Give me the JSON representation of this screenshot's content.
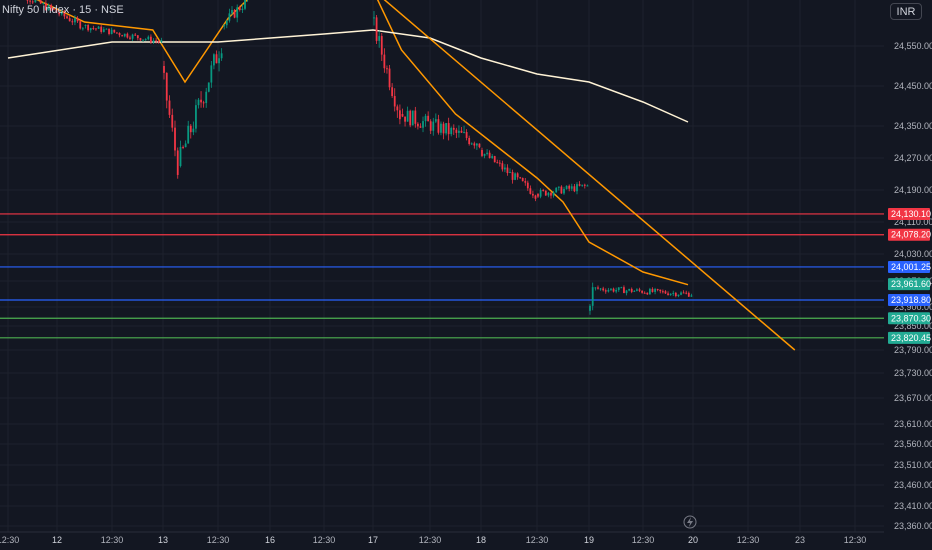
{
  "header": {
    "symbol": "Nifty 50 Index · 15 · NSE",
    "currency": "INR"
  },
  "chart_data": {
    "type": "candlestick",
    "interval": "15",
    "yaxis": {
      "ylim": [
        23340,
        24680
      ],
      "ticks": [
        24550,
        24450,
        24350,
        24270,
        24190,
        24110,
        24030,
        23970,
        23900,
        23850,
        23790,
        23730,
        23670,
        23610,
        23560,
        23510,
        23460,
        23410,
        23360
      ],
      "tick_labels": [
        "24,550.00",
        "24,450.00",
        "24,350.00",
        "24,270.00",
        "24,190.00",
        "24,110.00",
        "24,030.00",
        "23,970.00",
        "23,900.00",
        "23,850.00",
        "23,790.00",
        "23,730.00",
        "23,670.00",
        "23,610.00",
        "23,560.00",
        "23,510.00",
        "23,460.00",
        "23,410.00",
        "23,360.00"
      ]
    },
    "xaxis": {
      "tick_labels": [
        "12:30",
        "12",
        "12:30",
        "13",
        "12:30",
        "16",
        "12:30",
        "17",
        "12:30",
        "18",
        "12:30",
        "19",
        "12:30",
        "20",
        "12:30",
        "23",
        "12:30"
      ],
      "session_boundaries": [
        "12",
        "13",
        "16",
        "17",
        "18",
        "19",
        "20"
      ]
    },
    "price_labels": [
      {
        "value": 24130.1,
        "text": "24,130.10",
        "color": "#f23645"
      },
      {
        "value": 24078.2,
        "text": "24,078.20",
        "color": "#f23645"
      },
      {
        "value": 24001.25,
        "text": "24,001.25",
        "color": "#2962ff"
      },
      {
        "value": 23961.6,
        "text": "23,961.60",
        "color": "#22ab94"
      },
      {
        "value": 23918.8,
        "text": "23,918.80",
        "color": "#2962ff"
      },
      {
        "value": 23870.3,
        "text": "23,870.30",
        "color": "#22ab94"
      },
      {
        "value": 23820.45,
        "text": "23,820.45",
        "color": "#22ab94"
      }
    ],
    "horizontal_lines": [
      {
        "value": 24130.1,
        "color": "#f23645"
      },
      {
        "value": 24078.2,
        "color": "#f23645"
      },
      {
        "value": 24001.25,
        "color": "#2962ff"
      },
      {
        "value": 23918.8,
        "color": "#2962ff"
      },
      {
        "value": 23870.3,
        "color": "#4caf50"
      },
      {
        "value": 23820.45,
        "color": "#4caf50"
      }
    ],
    "colors": {
      "up": "#089981",
      "down": "#f23645",
      "ma_fast": "#ff9800",
      "ma_slow": "#fff3d6",
      "trendline": "#ff9800",
      "background": "#131722",
      "grid": "#1e222d"
    },
    "series": [
      {
        "name": "",
        "type": "candles",
        "segments": [
          {
            "from_label_index": 0,
            "to_label_index": 1.5,
            "start": 24700,
            "end": 24600,
            "noise": 10
          },
          {
            "from_label_index": 1.5,
            "to_label_index": 3,
            "start": 24600,
            "end": 24560,
            "noise": 8
          },
          {
            "from_label_index": 3,
            "to_label_index": 3.3,
            "start": 24500,
            "end": 24250,
            "noise": 25
          },
          {
            "from_label_index": 3.3,
            "to_label_index": 4.1,
            "start": 24250,
            "end": 24560,
            "noise": 30
          },
          {
            "from_label_index": 4.1,
            "to_label_index": 5,
            "start": 24600,
            "end": 24720,
            "noise": 15
          },
          {
            "from_label_index": 5,
            "to_label_index": 7,
            "start": 24700,
            "end": 24690,
            "noise": 10
          },
          {
            "from_label_index": 7,
            "to_label_index": 7.5,
            "start": 24620,
            "end": 24380,
            "noise": 25
          },
          {
            "from_label_index": 7.5,
            "to_label_index": 9,
            "start": 24380,
            "end": 24310,
            "noise": 20
          },
          {
            "from_label_index": 9,
            "to_label_index": 10,
            "start": 24290,
            "end": 24180,
            "noise": 12
          },
          {
            "from_label_index": 10,
            "to_label_index": 11,
            "start": 24180,
            "end": 24200,
            "noise": 10
          },
          {
            "from_label_index": 11,
            "to_label_index": 11.1,
            "start": 23890,
            "end": 23945,
            "noise": 20
          },
          {
            "from_label_index": 11.1,
            "to_label_index": 13,
            "start": 23950,
            "end": 23935,
            "noise": 8
          }
        ]
      },
      {
        "name": "",
        "type": "line",
        "color": "#ff9800",
        "points": [
          [
            0,
            24700
          ],
          [
            1.5,
            24610
          ],
          [
            2.8,
            24590
          ],
          [
            3.4,
            24460
          ],
          [
            4.2,
            24620
          ],
          [
            5,
            24720
          ],
          [
            6.5,
            24700
          ],
          [
            7,
            24690
          ],
          [
            7.5,
            24540
          ],
          [
            8.5,
            24380
          ],
          [
            10,
            24220
          ],
          [
            10.5,
            24160
          ],
          [
            11,
            24060
          ],
          [
            12,
            23990
          ],
          [
            12.9,
            23960
          ]
        ]
      },
      {
        "name": "",
        "type": "line",
        "color": "#fff3d6",
        "points": [
          [
            0,
            24520
          ],
          [
            2,
            24560
          ],
          [
            4,
            24560
          ],
          [
            6,
            24580
          ],
          [
            7,
            24590
          ],
          [
            8,
            24570
          ],
          [
            9,
            24520
          ],
          [
            10,
            24480
          ],
          [
            11,
            24460
          ],
          [
            12,
            24410
          ],
          [
            12.9,
            24360
          ]
        ]
      },
      {
        "name": "",
        "type": "trendline",
        "color": "#ff9800",
        "points": [
          [
            7,
            24690
          ],
          [
            14.9,
            23790
          ]
        ]
      }
    ]
  }
}
